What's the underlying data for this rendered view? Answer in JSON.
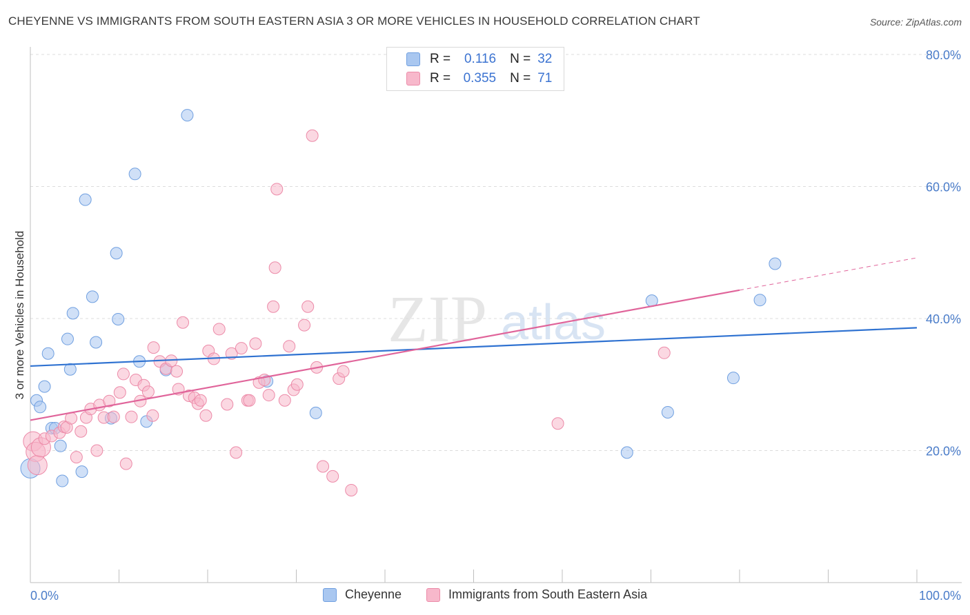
{
  "title": "CHEYENNE VS IMMIGRANTS FROM SOUTH EASTERN ASIA 3 OR MORE VEHICLES IN HOUSEHOLD CORRELATION CHART",
  "source": "Source: ZipAtlas.com",
  "watermark": {
    "zip": "ZIP",
    "atlas": "atlas"
  },
  "legend": {
    "r_label": "R =",
    "n_label": "N =",
    "rows": [
      {
        "r": "0.116",
        "n": "32",
        "color": "#a9c7f0"
      },
      {
        "r": "0.355",
        "n": "71",
        "color": "#f7b8cb"
      }
    ]
  },
  "bottom_legend": [
    {
      "label": "Cheyenne",
      "color": "#a9c7f0"
    },
    {
      "label": "Immigrants from South Eastern Asia",
      "color": "#f7b8cb"
    }
  ],
  "chart_data": {
    "type": "scatter",
    "title": "CHEYENNE VS IMMIGRANTS FROM SOUTH EASTERN ASIA 3 OR MORE VEHICLES IN HOUSEHOLD CORRELATION CHART",
    "xlabel": "",
    "ylabel": "3 or more Vehicles in Household",
    "xlim": [
      0,
      100
    ],
    "ylim": [
      0,
      80
    ],
    "x_tick_labels": [
      "0.0%",
      "100.0%"
    ],
    "y_ticks": [
      20,
      40,
      60,
      80
    ],
    "y_tick_labels": [
      "20.0%",
      "40.0%",
      "60.0%",
      "80.0%"
    ],
    "grid": true,
    "series": [
      {
        "name": "Cheyenne",
        "color": "#a9c7f0",
        "edge": "#6f9fe0",
        "line_color": "#2f72d1",
        "trend": {
          "x": [
            0,
            100
          ],
          "y": [
            32.8,
            38.6
          ]
        },
        "points": [
          [
            0.0,
            17.3
          ],
          [
            0.7,
            27.6
          ],
          [
            1.1,
            26.6
          ],
          [
            1.6,
            29.7
          ],
          [
            2.0,
            34.7
          ],
          [
            2.4,
            23.4
          ],
          [
            2.8,
            23.4
          ],
          [
            3.4,
            20.7
          ],
          [
            3.6,
            15.4
          ],
          [
            4.2,
            36.9
          ],
          [
            4.5,
            32.3
          ],
          [
            4.8,
            40.8
          ],
          [
            5.8,
            16.8
          ],
          [
            6.2,
            58.0
          ],
          [
            7.0,
            43.3
          ],
          [
            7.4,
            36.4
          ],
          [
            9.1,
            24.9
          ],
          [
            9.7,
            49.9
          ],
          [
            9.9,
            39.9
          ],
          [
            11.8,
            61.9
          ],
          [
            12.3,
            33.5
          ],
          [
            13.1,
            24.4
          ],
          [
            15.3,
            32.2
          ],
          [
            17.7,
            70.8
          ],
          [
            26.7,
            30.5
          ],
          [
            32.2,
            25.7
          ],
          [
            67.3,
            19.7
          ],
          [
            70.1,
            42.7
          ],
          [
            71.9,
            25.8
          ],
          [
            79.3,
            31.0
          ],
          [
            82.3,
            42.8
          ],
          [
            84.0,
            48.3
          ]
        ]
      },
      {
        "name": "Immigrants from South Eastern Asia",
        "color": "#f7b8cb",
        "edge": "#ec8aa8",
        "line_color": "#e0649a",
        "trend": {
          "x": [
            0,
            80
          ],
          "y": [
            24.6,
            44.3
          ]
        },
        "trend_dashed": {
          "x": [
            80,
            100
          ],
          "y": [
            44.3,
            49.2
          ]
        },
        "points": [
          [
            0.3,
            21.4
          ],
          [
            0.6,
            19.8
          ],
          [
            0.8,
            17.8
          ],
          [
            1.2,
            20.5
          ],
          [
            1.6,
            21.8
          ],
          [
            2.4,
            22.2
          ],
          [
            3.3,
            22.7
          ],
          [
            3.8,
            23.6
          ],
          [
            4.1,
            23.5
          ],
          [
            4.6,
            24.9
          ],
          [
            5.2,
            19.0
          ],
          [
            5.7,
            22.9
          ],
          [
            6.3,
            25.0
          ],
          [
            6.8,
            26.3
          ],
          [
            7.5,
            20.0
          ],
          [
            7.8,
            26.9
          ],
          [
            8.3,
            25.0
          ],
          [
            8.9,
            27.5
          ],
          [
            9.4,
            25.1
          ],
          [
            10.1,
            28.8
          ],
          [
            10.5,
            31.6
          ],
          [
            10.8,
            18.0
          ],
          [
            11.4,
            25.1
          ],
          [
            11.9,
            30.7
          ],
          [
            12.4,
            27.5
          ],
          [
            12.8,
            29.9
          ],
          [
            13.3,
            28.9
          ],
          [
            13.8,
            25.3
          ],
          [
            13.9,
            35.6
          ],
          [
            14.6,
            33.5
          ],
          [
            15.3,
            32.4
          ],
          [
            15.9,
            33.6
          ],
          [
            16.5,
            32.0
          ],
          [
            16.7,
            29.3
          ],
          [
            17.2,
            39.4
          ],
          [
            17.9,
            28.3
          ],
          [
            18.5,
            28.0
          ],
          [
            18.9,
            27.1
          ],
          [
            19.2,
            27.6
          ],
          [
            19.8,
            25.3
          ],
          [
            20.1,
            35.1
          ],
          [
            20.7,
            33.9
          ],
          [
            21.3,
            38.4
          ],
          [
            22.2,
            27.0
          ],
          [
            22.7,
            34.7
          ],
          [
            23.2,
            19.7
          ],
          [
            23.8,
            35.5
          ],
          [
            24.5,
            27.6
          ],
          [
            24.7,
            27.6
          ],
          [
            25.4,
            36.2
          ],
          [
            25.8,
            30.3
          ],
          [
            26.4,
            30.7
          ],
          [
            26.9,
            28.4
          ],
          [
            27.8,
            59.6
          ],
          [
            28.7,
            27.6
          ],
          [
            29.2,
            35.8
          ],
          [
            29.7,
            29.2
          ],
          [
            30.1,
            30.0
          ],
          [
            30.9,
            39.0
          ],
          [
            31.3,
            41.8
          ],
          [
            31.8,
            67.7
          ],
          [
            32.3,
            32.6
          ],
          [
            33.0,
            17.6
          ],
          [
            34.1,
            16.1
          ],
          [
            34.8,
            30.9
          ],
          [
            35.3,
            32.0
          ],
          [
            36.2,
            14.0
          ],
          [
            27.4,
            41.8
          ],
          [
            27.6,
            47.7
          ],
          [
            59.5,
            24.1
          ],
          [
            71.5,
            34.8
          ]
        ]
      }
    ]
  }
}
